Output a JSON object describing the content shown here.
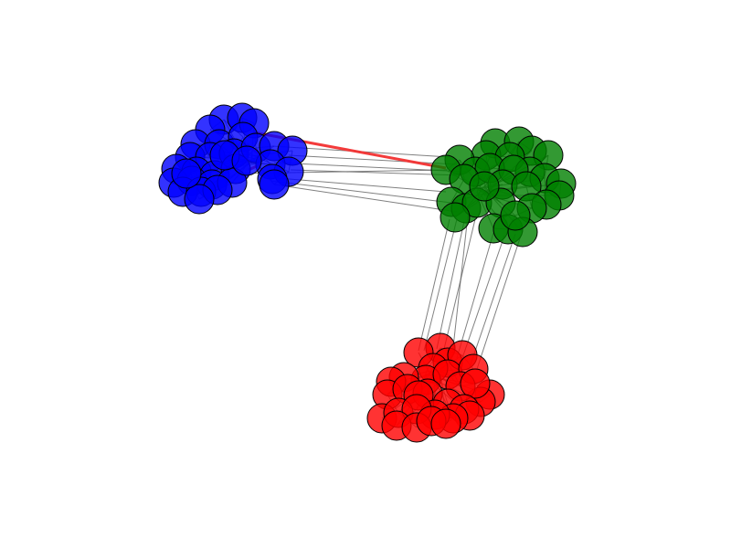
{
  "graph": {
    "clusters": [
      {
        "id": "blue",
        "color": "#0000ff",
        "node_count": 32
      },
      {
        "id": "green",
        "color": "#008000",
        "node_count": 30
      },
      {
        "id": "red",
        "color": "#ff0000",
        "node_count": 30
      }
    ],
    "inter_cluster_edge_color": "#555555",
    "highlighted_edge_color": "#f23030",
    "highlighted_edge": {
      "from_cluster": "blue",
      "to_cluster": "green"
    }
  }
}
